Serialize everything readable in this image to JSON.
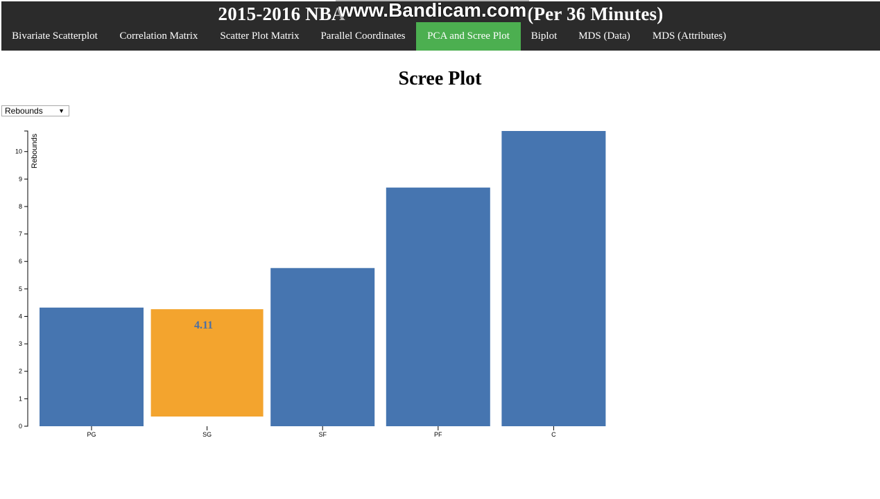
{
  "header": {
    "title": "2015-2016 NBA",
    "title_suffix": "(Per 36 Minutes)",
    "watermark": "www.Bandicam.com"
  },
  "nav": {
    "items": [
      {
        "label": "Bivariate Scatterplot",
        "active": false
      },
      {
        "label": "Correlation Matrix",
        "active": false
      },
      {
        "label": "Scatter Plot Matrix",
        "active": false
      },
      {
        "label": "Parallel Coordinates",
        "active": false
      },
      {
        "label": "PCA and Scree Plot",
        "active": true
      },
      {
        "label": "Biplot",
        "active": false
      },
      {
        "label": "MDS (Data)",
        "active": false
      },
      {
        "label": "MDS (Attributes)",
        "active": false
      }
    ]
  },
  "plot_title": "Scree Plot",
  "select": {
    "value": "Rebounds",
    "caret": "▼"
  },
  "colors": {
    "bar": "#4675b0",
    "highlight": "#f3a42e",
    "active_tab": "#4caf50",
    "header_bg": "#2b2b2b"
  },
  "chart_data": {
    "type": "bar",
    "categories": [
      "PG",
      "SG",
      "SF",
      "PF",
      "C"
    ],
    "values": [
      4.32,
      4.11,
      5.76,
      8.69,
      10.75
    ],
    "ylabel": "Rebounds",
    "ylim": [
      0,
      10.75
    ],
    "yticks": [
      "0",
      "1",
      "2",
      "3",
      "4",
      "5",
      "6",
      "7",
      "8",
      "9",
      "10"
    ],
    "highlighted": {
      "category": "SG",
      "label": "4.11"
    }
  }
}
